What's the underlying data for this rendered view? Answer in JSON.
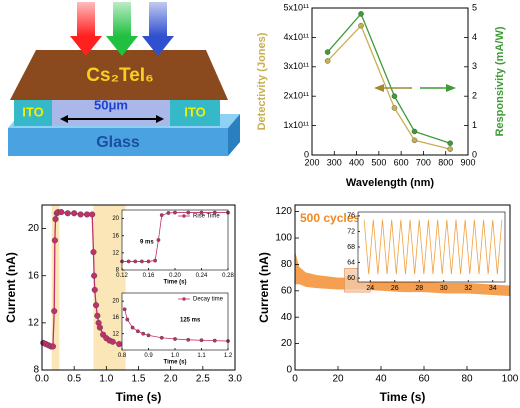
{
  "schematic": {
    "film": "Cs₂TeI₆",
    "electrode_left": "ITO",
    "electrode_right": "ITO",
    "gap": "50μm",
    "substrate": "Glass"
  },
  "chart_data": [
    {
      "type": "line",
      "xlabel": "Wavelength (nm)",
      "ylabel": "Detectivity (Jones)",
      "y2label": "Responsivity (mA/W)",
      "x": [
        270,
        420,
        570,
        660,
        820
      ],
      "series": [
        {
          "color": "#c8b050",
          "values": [
            320000000000.0,
            440000000000.0,
            160000000000.0,
            50000000000.0,
            20000000000.0
          ]
        },
        {
          "color": "#3f9a3a",
          "axis": "y2",
          "values": [
            3.5,
            4.8,
            2.0,
            0.8,
            0.4
          ]
        }
      ],
      "markers": true,
      "xlim": [
        200,
        900
      ],
      "xticks": [
        200,
        300,
        400,
        500,
        600,
        700,
        800,
        900
      ],
      "ylim": [
        0,
        500000000000.0
      ],
      "yticks": [
        0,
        {
          "value": 100000000000.0,
          "label": "1x10¹¹"
        },
        {
          "value": 200000000000.0,
          "label": "2x10¹¹"
        },
        {
          "value": 300000000000.0,
          "label": "3x10¹¹"
        },
        {
          "value": 400000000000.0,
          "label": "4x10¹¹"
        },
        {
          "value": 500000000000.0,
          "label": "5x10¹¹"
        }
      ],
      "y2lim": [
        0,
        5
      ],
      "y2ticks": [
        0,
        1,
        2,
        3,
        4,
        5
      ]
    },
    {
      "type": "line",
      "xlabel": "Time (s)",
      "ylabel": "Current (nA)",
      "x": [
        0.02,
        0.06,
        0.1,
        0.14,
        0.17,
        0.19,
        0.2,
        0.21,
        0.23,
        0.25,
        0.3,
        0.4,
        0.5,
        0.6,
        0.7,
        0.78,
        0.8,
        0.81,
        0.82,
        0.84,
        0.86,
        0.88,
        0.9,
        0.95,
        1.0,
        1.05,
        1.1,
        1.2,
        1.3,
        1.35
      ],
      "series": [
        {
          "color": "#c0306a",
          "values": [
            10.3,
            10.2,
            10.1,
            10.0,
            10.0,
            13.0,
            19.0,
            20.8,
            21.3,
            21.4,
            21.4,
            21.3,
            21.3,
            21.2,
            21.2,
            21.2,
            18.0,
            16.0,
            14.8,
            13.5,
            12.6,
            12.0,
            11.6,
            11.0,
            10.7,
            10.5,
            10.4,
            10.2,
            10.1,
            10.1
          ]
        }
      ],
      "markers": true,
      "bands": [
        [
          0.15,
          0.27
        ],
        [
          0.8,
          1.3
        ]
      ],
      "band_color": "#fbe6b8",
      "xlim": [
        0,
        3
      ],
      "xticks": [
        {
          "value": 0,
          "label": "0.0"
        },
        0.5,
        {
          "value": 1,
          "label": "1.0"
        },
        1.5,
        {
          "value": 2,
          "label": "2.0"
        },
        2.5,
        {
          "value": 3,
          "label": "3.0"
        }
      ],
      "ylim": [
        8,
        22
      ],
      "yticks": [
        8,
        12,
        16,
        20
      ],
      "insets": [
        {
          "type": "line",
          "xlabel": "Time (s)",
          "annotation": "9 ms",
          "x": [
            0.12,
            0.13,
            0.14,
            0.15,
            0.16,
            0.17,
            0.175,
            0.18,
            0.19,
            0.2,
            0.22,
            0.24,
            0.26,
            0.28
          ],
          "series": [
            {
              "name": "Rise Time",
              "color": "#c0306a",
              "values": [
                10,
                10,
                10,
                10,
                10,
                10.2,
                15,
                20.8,
                21.3,
                21.4,
                21.4,
                21.4,
                21.4,
                21.4
              ]
            }
          ],
          "markers": true,
          "xlim": [
            0.12,
            0.28
          ],
          "xticks": [
            0.12,
            0.16,
            {
              "value": 0.2,
              "label": "0.20"
            },
            0.24,
            0.28
          ],
          "ylim": [
            8,
            22
          ],
          "yticks": [
            8,
            12,
            16,
            20
          ]
        },
        {
          "type": "line",
          "xlabel": "Time (s)",
          "annotation": "125 ms",
          "x": [
            0.81,
            0.82,
            0.84,
            0.86,
            0.88,
            0.9,
            0.95,
            1.0,
            1.05,
            1.1,
            1.15,
            1.2
          ],
          "series": [
            {
              "name": "Decay time",
              "color": "#c0306a",
              "values": [
                18,
                15.5,
                13.5,
                12.6,
                12.0,
                11.6,
                11.0,
                10.7,
                10.5,
                10.4,
                10.3,
                10.2
              ]
            }
          ],
          "markers": true,
          "xlim": [
            0.8,
            1.2
          ],
          "xticks": [
            0.8,
            0.9,
            {
              "value": 1,
              "label": "1.0"
            },
            1.1,
            1.2
          ],
          "ylim": [
            8,
            22
          ],
          "yticks": [
            12,
            16,
            20
          ]
        }
      ]
    },
    {
      "type": "area",
      "xlabel": "Time (s)",
      "ylabel": "Current (nA)",
      "annotation": "500 cycles",
      "annotation_color": "#f08a20",
      "range": {
        "color": "#f5a050",
        "x": [
          0,
          2,
          5,
          10,
          20,
          30,
          40,
          50,
          60,
          70,
          80,
          90,
          100
        ],
        "high": [
          90,
          78,
          74,
          72,
          70,
          70,
          68,
          67,
          67,
          66,
          66,
          65,
          64
        ],
        "low": [
          65,
          65,
          63,
          62,
          61,
          61,
          60,
          59,
          59,
          58,
          58,
          57,
          56
        ]
      },
      "xlim": [
        0,
        100
      ],
      "xticks": [
        0,
        20,
        40,
        60,
        80,
        100
      ],
      "ylim": [
        0,
        125
      ],
      "yticks": [
        0,
        20,
        40,
        60,
        80,
        100,
        120
      ],
      "zoom_box": true,
      "insets": [
        {
          "type": "line",
          "x": [
            23.5,
            23.875,
            24.25,
            24.625,
            25,
            25.375,
            25.75,
            26.125,
            26.5,
            26.875,
            27.25,
            27.625,
            28,
            28.375,
            28.75,
            29.125,
            29.5,
            29.875,
            30.25,
            30.625,
            31,
            31.375,
            31.75,
            32.125,
            32.5,
            32.875,
            33.25,
            33.625,
            34,
            34.375,
            34.75
          ],
          "series": [
            {
              "color": "#f0a040",
              "values": [
                75,
                61,
                75,
                61,
                75,
                61,
                75,
                61,
                75,
                61,
                75,
                61,
                75,
                61,
                75,
                61,
                75,
                61,
                75,
                61,
                75,
                61,
                75,
                61,
                75,
                61,
                75,
                61,
                75,
                61,
                75
              ]
            }
          ],
          "xlim": [
            23,
            35
          ],
          "xticks": [
            24,
            26,
            28,
            30,
            32,
            34
          ],
          "ylim": [
            59,
            77
          ],
          "yticks": [
            60,
            64,
            68,
            72,
            76
          ]
        }
      ]
    }
  ]
}
